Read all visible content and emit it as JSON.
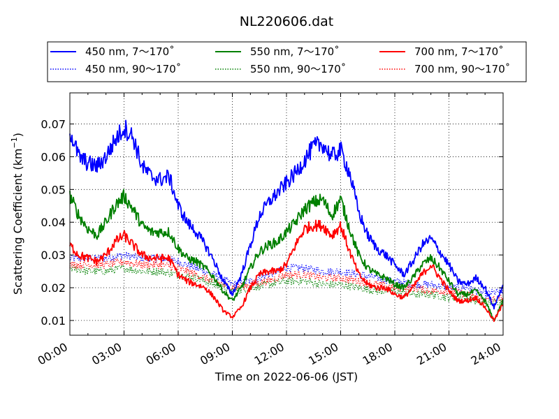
{
  "chart_data": {
    "type": "line",
    "title": "NL220606.dat",
    "xlabel": "Time on 2022-06-06 (JST)",
    "ylabel_main": "Scattering Coefficient (km",
    "ylabel_sup": "−1",
    "ylabel_close": ")",
    "xlim": [
      0,
      24
    ],
    "ylim": [
      0.0055,
      0.0795
    ],
    "grid": true,
    "legend_position": "top (above plot, 3 columns)",
    "x_ticks": [
      {
        "value": 0,
        "label": "00:00"
      },
      {
        "value": 3,
        "label": "03:00"
      },
      {
        "value": 6,
        "label": "06:00"
      },
      {
        "value": 9,
        "label": "09:00"
      },
      {
        "value": 12,
        "label": "12:00"
      },
      {
        "value": 15,
        "label": "15:00"
      },
      {
        "value": 18,
        "label": "18:00"
      },
      {
        "value": 21,
        "label": "21:00"
      },
      {
        "value": 24,
        "label": "24:00"
      }
    ],
    "y_ticks": [
      {
        "value": 0.01,
        "label": "0.01"
      },
      {
        "value": 0.02,
        "label": "0.02"
      },
      {
        "value": 0.03,
        "label": "0.03"
      },
      {
        "value": 0.04,
        "label": "0.04"
      },
      {
        "value": 0.05,
        "label": "0.05"
      },
      {
        "value": 0.06,
        "label": "0.06"
      },
      {
        "value": 0.07,
        "label": "0.07"
      }
    ],
    "series": [
      {
        "name": "450 nm, 7～170˚",
        "color": "#0000ff",
        "style": "solid",
        "x": [
          0,
          0.5,
          1,
          1.5,
          2,
          2.5,
          3,
          3.5,
          4,
          4.5,
          5,
          5.5,
          6,
          6.5,
          7,
          7.5,
          8,
          8.5,
          9,
          9.5,
          10,
          10.5,
          11,
          11.5,
          12,
          12.5,
          13,
          13.5,
          14,
          14.5,
          15,
          15.5,
          16,
          16.5,
          17,
          17.5,
          18,
          18.5,
          19,
          19.5,
          20,
          20.5,
          21,
          21.5,
          22,
          22.5,
          23,
          23.5,
          24
        ],
        "y": [
          0.068,
          0.06,
          0.058,
          0.057,
          0.06,
          0.065,
          0.069,
          0.066,
          0.057,
          0.054,
          0.053,
          0.054,
          0.045,
          0.04,
          0.037,
          0.033,
          0.028,
          0.022,
          0.018,
          0.024,
          0.033,
          0.042,
          0.046,
          0.049,
          0.052,
          0.055,
          0.059,
          0.063,
          0.064,
          0.06,
          0.062,
          0.055,
          0.043,
          0.036,
          0.032,
          0.03,
          0.027,
          0.024,
          0.028,
          0.033,
          0.035,
          0.031,
          0.027,
          0.022,
          0.021,
          0.023,
          0.02,
          0.014,
          0.021
        ]
      },
      {
        "name": "450 nm, 90～170˚",
        "color": "#0000ff",
        "style": "dotted",
        "x": [
          0,
          1,
          2,
          3,
          4,
          5,
          6,
          7,
          8,
          9,
          10,
          11,
          12,
          13,
          14,
          15,
          16,
          17,
          18,
          19,
          20,
          21,
          22,
          23,
          24
        ],
        "y": [
          0.029,
          0.029,
          0.029,
          0.03,
          0.029,
          0.029,
          0.028,
          0.026,
          0.024,
          0.021,
          0.022,
          0.024,
          0.026,
          0.026,
          0.025,
          0.025,
          0.024,
          0.023,
          0.022,
          0.021,
          0.021,
          0.02,
          0.02,
          0.018,
          0.019
        ]
      },
      {
        "name": "550 nm, 7～170˚",
        "color": "#008000",
        "style": "solid",
        "x": [
          0,
          0.5,
          1,
          1.5,
          2,
          2.5,
          3,
          3.5,
          4,
          4.5,
          5,
          5.5,
          6,
          6.5,
          7,
          7.5,
          8,
          8.5,
          9,
          9.5,
          10,
          10.5,
          11,
          11.5,
          12,
          12.5,
          13,
          13.5,
          14,
          14.5,
          15,
          15.5,
          16,
          16.5,
          17,
          17.5,
          18,
          18.5,
          19,
          19.5,
          20,
          20.5,
          21,
          21.5,
          22,
          22.5,
          23,
          23.5,
          24
        ],
        "y": [
          0.048,
          0.042,
          0.038,
          0.036,
          0.04,
          0.045,
          0.048,
          0.044,
          0.039,
          0.037,
          0.037,
          0.037,
          0.032,
          0.029,
          0.028,
          0.026,
          0.023,
          0.019,
          0.016,
          0.02,
          0.026,
          0.031,
          0.033,
          0.034,
          0.037,
          0.04,
          0.044,
          0.046,
          0.047,
          0.042,
          0.047,
          0.038,
          0.03,
          0.026,
          0.024,
          0.023,
          0.021,
          0.02,
          0.023,
          0.027,
          0.029,
          0.026,
          0.022,
          0.018,
          0.018,
          0.019,
          0.016,
          0.01,
          0.016
        ]
      },
      {
        "name": "550 nm, 90～170˚",
        "color": "#008000",
        "style": "dotted",
        "x": [
          0,
          1,
          2,
          3,
          4,
          5,
          6,
          7,
          8,
          9,
          10,
          11,
          12,
          13,
          14,
          15,
          16,
          17,
          18,
          19,
          20,
          21,
          22,
          23,
          24
        ],
        "y": [
          0.026,
          0.025,
          0.025,
          0.026,
          0.025,
          0.025,
          0.024,
          0.023,
          0.021,
          0.019,
          0.02,
          0.021,
          0.022,
          0.022,
          0.021,
          0.021,
          0.02,
          0.019,
          0.019,
          0.018,
          0.018,
          0.017,
          0.017,
          0.015,
          0.016
        ]
      },
      {
        "name": "700 nm, 7～170˚",
        "color": "#ff0000",
        "style": "solid",
        "x": [
          0,
          0.5,
          1,
          1.5,
          2,
          2.5,
          3,
          3.5,
          4,
          4.5,
          5,
          5.5,
          6,
          6.5,
          7,
          7.5,
          8,
          8.5,
          9,
          9.5,
          10,
          10.5,
          11,
          11.5,
          12,
          12.5,
          13,
          13.5,
          14,
          14.5,
          15,
          15.5,
          16,
          16.5,
          17,
          17.5,
          18,
          18.5,
          19,
          19.5,
          20,
          20.5,
          21,
          21.5,
          22,
          22.5,
          23,
          23.5,
          24
        ],
        "y": [
          0.033,
          0.03,
          0.029,
          0.028,
          0.03,
          0.034,
          0.036,
          0.033,
          0.03,
          0.029,
          0.029,
          0.029,
          0.024,
          0.022,
          0.021,
          0.02,
          0.017,
          0.013,
          0.011,
          0.014,
          0.02,
          0.024,
          0.025,
          0.025,
          0.027,
          0.033,
          0.038,
          0.039,
          0.039,
          0.036,
          0.039,
          0.031,
          0.024,
          0.021,
          0.02,
          0.02,
          0.018,
          0.017,
          0.02,
          0.024,
          0.027,
          0.023,
          0.019,
          0.016,
          0.016,
          0.017,
          0.014,
          0.01,
          0.015
        ]
      },
      {
        "name": "700 nm, 90～170˚",
        "color": "#ff0000",
        "style": "dotted",
        "x": [
          0,
          1,
          2,
          3,
          4,
          5,
          6,
          7,
          8,
          9,
          10,
          11,
          12,
          13,
          14,
          15,
          16,
          17,
          18,
          19,
          20,
          21,
          22,
          23,
          24
        ],
        "y": [
          0.027,
          0.027,
          0.027,
          0.028,
          0.027,
          0.027,
          0.026,
          0.024,
          0.022,
          0.02,
          0.021,
          0.022,
          0.024,
          0.024,
          0.023,
          0.023,
          0.022,
          0.021,
          0.02,
          0.02,
          0.019,
          0.019,
          0.018,
          0.016,
          0.017
        ]
      }
    ]
  }
}
